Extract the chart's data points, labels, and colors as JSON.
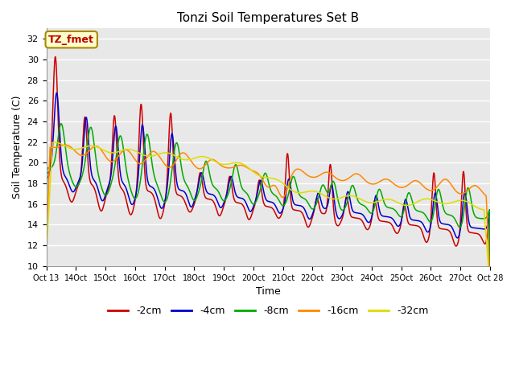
{
  "title": "Tonzi Soil Temperatures Set B",
  "xlabel": "Time",
  "ylabel": "Soil Temperature (C)",
  "ylim": [
    10,
    33
  ],
  "yticks": [
    10,
    12,
    14,
    16,
    18,
    20,
    22,
    24,
    26,
    28,
    30,
    32
  ],
  "series": [
    "-2cm",
    "-4cm",
    "-8cm",
    "-16cm",
    "-32cm"
  ],
  "colors": [
    "#cc0000",
    "#0000cc",
    "#00aa00",
    "#ff8800",
    "#dddd00"
  ],
  "legend_label": "TZ_fmet",
  "plot_bg_color": "#e8e8e8",
  "grid_color": "#ffffff",
  "n_points": 1440,
  "x_start": 13.0,
  "x_end": 28.0,
  "xtick_start": 13,
  "xtick_end": 28
}
